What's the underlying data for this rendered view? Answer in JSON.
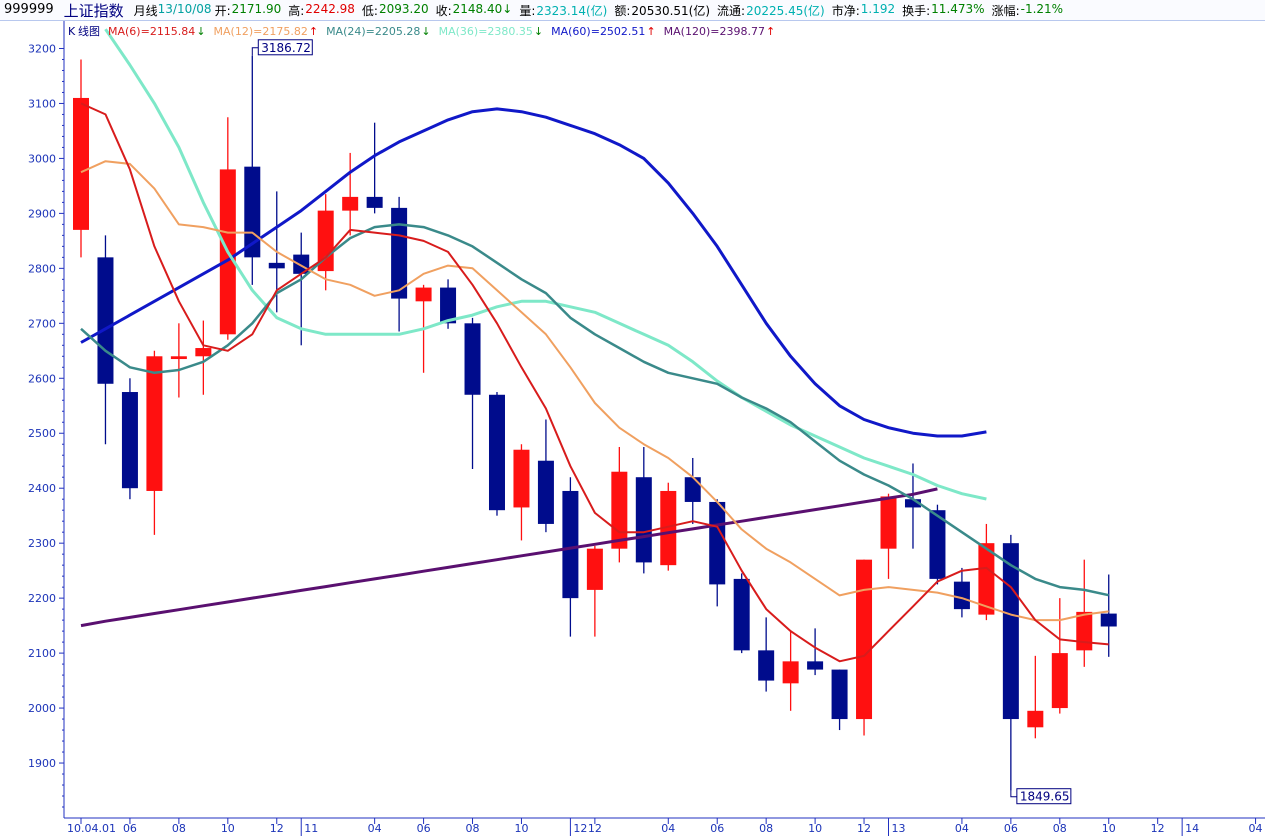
{
  "header": {
    "code": "999999",
    "name": "上证指数",
    "period": "月线",
    "date": "13/10/08",
    "items": [
      {
        "label": "开:",
        "value": "2171.90",
        "color": "#008000"
      },
      {
        "label": "高:",
        "value": "2242.98",
        "color": "#e00000"
      },
      {
        "label": "低:",
        "value": "2093.20",
        "color": "#008000"
      },
      {
        "label": "收:",
        "value": "2148.40",
        "color": "#008000",
        "arrow": "↓"
      },
      {
        "label": "量:",
        "value": "2323.14(亿)",
        "color": "#00b0b0"
      },
      {
        "label": "额:",
        "value": "20530.51(亿)",
        "color": "#000000"
      },
      {
        "label": "流通:",
        "value": "20225.45(亿)",
        "color": "#00b0b0"
      },
      {
        "label": "市净:",
        "value": "1.192",
        "color": "#00b0b0"
      },
      {
        "label": "换手:",
        "value": "11.473%",
        "color": "#008000"
      },
      {
        "label": "涨幅:",
        "value": "-1.21%",
        "color": "#008000"
      }
    ]
  },
  "legend": {
    "chart_name": "K线图",
    "items": [
      {
        "text": "MA(6)=2115.84",
        "arrow": "down",
        "color": "#d81c1c"
      },
      {
        "text": "MA(12)=2175.82",
        "arrow": "up",
        "color": "#f0a060"
      },
      {
        "text": "MA(24)=2205.28",
        "arrow": "down",
        "color": "#3a8a8a"
      },
      {
        "text": "MA(36)=2380.35",
        "arrow": "down",
        "color": "#7ee8c8"
      },
      {
        "text": "MA(60)=2502.51",
        "arrow": "up",
        "color": "#1018c8"
      },
      {
        "text": "MA(120)=2398.77",
        "arrow": "up",
        "color": "#5a1070"
      }
    ]
  },
  "chart_data": {
    "type": "candlestick",
    "ylim": [
      1800,
      3250
    ],
    "y_ticks": [
      1900,
      2000,
      2100,
      2200,
      2300,
      2400,
      2500,
      2600,
      2700,
      2800,
      2900,
      3000,
      3100,
      3200
    ],
    "x_tick_labels": [
      {
        "i": 0,
        "label": "10.04.01"
      },
      {
        "i": 2,
        "label": "06"
      },
      {
        "i": 4,
        "label": "08"
      },
      {
        "i": 6,
        "label": "10"
      },
      {
        "i": 8,
        "label": "12"
      },
      {
        "i": 9,
        "label": "11"
      },
      {
        "i": 12,
        "label": "04"
      },
      {
        "i": 14,
        "label": "06"
      },
      {
        "i": 16,
        "label": "08"
      },
      {
        "i": 18,
        "label": "10"
      },
      {
        "i": 20,
        "label": "12"
      },
      {
        "i": 21,
        "label": "12"
      },
      {
        "i": 24,
        "label": "04"
      },
      {
        "i": 26,
        "label": "06"
      },
      {
        "i": 28,
        "label": "08"
      },
      {
        "i": 30,
        "label": "10"
      },
      {
        "i": 32,
        "label": "12"
      },
      {
        "i": 33,
        "label": "13"
      },
      {
        "i": 36,
        "label": "04"
      },
      {
        "i": 38,
        "label": "06"
      },
      {
        "i": 40,
        "label": "08"
      },
      {
        "i": 42,
        "label": "10"
      },
      {
        "i": 44,
        "label": "12"
      },
      {
        "i": 45,
        "label": "14"
      },
      {
        "i": 48,
        "label": "04"
      }
    ],
    "candles": [
      {
        "o": 2870,
        "h": 3180,
        "l": 2820,
        "c": 3110
      },
      {
        "o": 2820,
        "h": 2860,
        "l": 2480,
        "c": 2590
      },
      {
        "o": 2575,
        "h": 2600,
        "l": 2380,
        "c": 2400
      },
      {
        "o": 2395,
        "h": 2650,
        "l": 2315,
        "c": 2640
      },
      {
        "o": 2635,
        "h": 2700,
        "l": 2565,
        "c": 2640
      },
      {
        "o": 2640,
        "h": 2705,
        "l": 2570,
        "c": 2655
      },
      {
        "o": 2680,
        "h": 3075,
        "l": 2670,
        "c": 2980
      },
      {
        "o": 2985,
        "h": 3186.72,
        "l": 2770,
        "c": 2820
      },
      {
        "o": 2810,
        "h": 2940,
        "l": 2720,
        "c": 2800
      },
      {
        "o": 2825,
        "h": 2865,
        "l": 2660,
        "c": 2790
      },
      {
        "o": 2795,
        "h": 2935,
        "l": 2760,
        "c": 2905
      },
      {
        "o": 2905,
        "h": 3010,
        "l": 2860,
        "c": 2930
      },
      {
        "o": 2930,
        "h": 3065,
        "l": 2900,
        "c": 2910
      },
      {
        "o": 2910,
        "h": 2930,
        "l": 2685,
        "c": 2745
      },
      {
        "o": 2740,
        "h": 2770,
        "l": 2610,
        "c": 2765
      },
      {
        "o": 2765,
        "h": 2780,
        "l": 2690,
        "c": 2700
      },
      {
        "o": 2700,
        "h": 2710,
        "l": 2435,
        "c": 2570
      },
      {
        "o": 2570,
        "h": 2575,
        "l": 2350,
        "c": 2360
      },
      {
        "o": 2365,
        "h": 2480,
        "l": 2305,
        "c": 2470
      },
      {
        "o": 2450,
        "h": 2525,
        "l": 2320,
        "c": 2335
      },
      {
        "o": 2395,
        "h": 2420,
        "l": 2130,
        "c": 2200
      },
      {
        "o": 2215,
        "h": 2295,
        "l": 2130,
        "c": 2290
      },
      {
        "o": 2290,
        "h": 2475,
        "l": 2265,
        "c": 2430
      },
      {
        "o": 2420,
        "h": 2475,
        "l": 2245,
        "c": 2265
      },
      {
        "o": 2260,
        "h": 2410,
        "l": 2250,
        "c": 2395
      },
      {
        "o": 2420,
        "h": 2455,
        "l": 2335,
        "c": 2375
      },
      {
        "o": 2375,
        "h": 2380,
        "l": 2185,
        "c": 2225
      },
      {
        "o": 2235,
        "h": 2245,
        "l": 2100,
        "c": 2105
      },
      {
        "o": 2105,
        "h": 2165,
        "l": 2030,
        "c": 2050
      },
      {
        "o": 2045,
        "h": 2140,
        "l": 1995,
        "c": 2085
      },
      {
        "o": 2085,
        "h": 2145,
        "l": 2060,
        "c": 2070
      },
      {
        "o": 2070,
        "h": 2070,
        "l": 1960,
        "c": 1980
      },
      {
        "o": 1980,
        "h": 2270,
        "l": 1950,
        "c": 2270
      },
      {
        "o": 2290,
        "h": 2390,
        "l": 2235,
        "c": 2385
      },
      {
        "o": 2380,
        "h": 2445,
        "l": 2290,
        "c": 2365
      },
      {
        "o": 2360,
        "h": 2370,
        "l": 2225,
        "c": 2235
      },
      {
        "o": 2230,
        "h": 2255,
        "l": 2165,
        "c": 2180
      },
      {
        "o": 2170,
        "h": 2335,
        "l": 2160,
        "c": 2300
      },
      {
        "o": 2300,
        "h": 2315,
        "l": 1849.65,
        "c": 1980
      },
      {
        "o": 1965,
        "h": 2095,
        "l": 1945,
        "c": 1995
      },
      {
        "o": 2000,
        "h": 2200,
        "l": 1990,
        "c": 2100
      },
      {
        "o": 2105,
        "h": 2270,
        "l": 2075,
        "c": 2175
      },
      {
        "o": 2171.9,
        "h": 2242.98,
        "l": 2093.2,
        "c": 2148.4
      }
    ],
    "series": [
      {
        "name": "MA(6)",
        "color": "#d81c1c",
        "start": 0,
        "values": [
          3100,
          3080,
          2980,
          2840,
          2740,
          2660,
          2650,
          2680,
          2760,
          2790,
          2820,
          2870,
          2865,
          2860,
          2850,
          2830,
          2770,
          2700,
          2620,
          2545,
          2440,
          2355,
          2320,
          2320,
          2330,
          2340,
          2330,
          2250,
          2180,
          2140,
          2110,
          2085,
          2095,
          2140,
          2185,
          2230,
          2250,
          2255,
          2220,
          2160,
          2125,
          2120,
          2115.84
        ]
      },
      {
        "name": "MA(12)",
        "color": "#f0a060",
        "start": 0,
        "values": [
          2975,
          2995,
          2990,
          2945,
          2880,
          2875,
          2865,
          2865,
          2830,
          2805,
          2780,
          2770,
          2750,
          2760,
          2790,
          2805,
          2800,
          2760,
          2720,
          2680,
          2620,
          2555,
          2510,
          2480,
          2455,
          2420,
          2375,
          2325,
          2290,
          2265,
          2235,
          2205,
          2215,
          2220,
          2215,
          2210,
          2200,
          2185,
          2170,
          2160,
          2160,
          2170,
          2175.82
        ]
      },
      {
        "name": "MA(24)",
        "color": "#3a8a8a",
        "start": 0,
        "values": [
          2690,
          2650,
          2620,
          2610,
          2615,
          2630,
          2660,
          2700,
          2755,
          2780,
          2820,
          2855,
          2875,
          2880,
          2875,
          2860,
          2840,
          2810,
          2780,
          2755,
          2710,
          2680,
          2655,
          2630,
          2610,
          2600,
          2590,
          2565,
          2545,
          2520,
          2485,
          2450,
          2425,
          2405,
          2380,
          2350,
          2320,
          2290,
          2260,
          2235,
          2220,
          2215,
          2205.28
        ]
      },
      {
        "name": "MA(36)",
        "color": "#7ee8c8",
        "start": 1,
        "values": [
          3235,
          3170,
          3100,
          3020,
          2920,
          2830,
          2760,
          2710,
          2690,
          2680,
          2680,
          2680,
          2680,
          2690,
          2705,
          2715,
          2730,
          2740,
          2740,
          2730,
          2720,
          2700,
          2680,
          2660,
          2630,
          2595,
          2565,
          2540,
          2515,
          2495,
          2475,
          2455,
          2440,
          2425,
          2405,
          2390,
          2380.35
        ]
      },
      {
        "name": "MA(60)",
        "color": "#1018c8",
        "start": 0,
        "values": [
          2665,
          2690,
          2715,
          2740,
          2765,
          2790,
          2815,
          2845,
          2875,
          2905,
          2940,
          2975,
          3005,
          3030,
          3050,
          3070,
          3085,
          3090,
          3085,
          3075,
          3060,
          3045,
          3025,
          3000,
          2955,
          2900,
          2840,
          2770,
          2700,
          2640,
          2590,
          2550,
          2525,
          2510,
          2500,
          2495,
          2495,
          2502.51
        ]
      },
      {
        "name": "MA(120)",
        "color": "#5a1070",
        "start": 0,
        "values": [
          2150,
          2158,
          2165,
          2172,
          2179,
          2186,
          2193,
          2200,
          2207,
          2214,
          2221,
          2228,
          2235,
          2242,
          2249,
          2256,
          2263,
          2270,
          2277,
          2284,
          2291,
          2298,
          2305,
          2312,
          2319,
          2326,
          2333,
          2340,
          2347,
          2354,
          2361,
          2368,
          2375,
          2382,
          2389,
          2398.77
        ]
      }
    ],
    "annotations": [
      {
        "label": "3186.72",
        "i": 7,
        "value": 3186.72
      },
      {
        "label": "1849.65",
        "i": 38,
        "value": 1849.65
      }
    ]
  }
}
